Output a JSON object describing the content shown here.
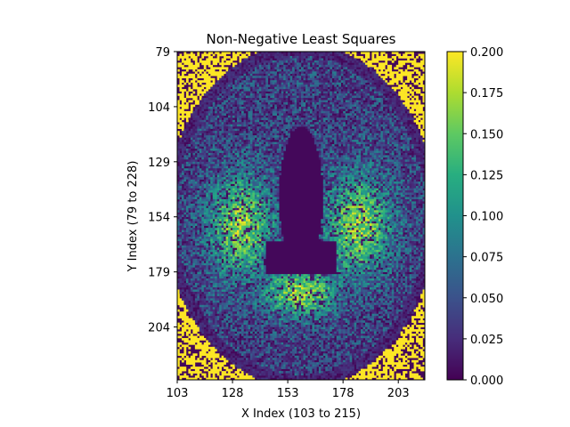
{
  "chart_data": {
    "type": "heatmap",
    "title": "Non-Negative Least Squares",
    "xlabel": "X Index (103 to 215)",
    "ylabel": "Y Index (79 to 228)",
    "x_range": [
      103,
      215
    ],
    "y_range": [
      79,
      228
    ],
    "x_ticks": [
      103,
      128,
      153,
      178,
      203
    ],
    "y_ticks": [
      79,
      104,
      129,
      154,
      179,
      204
    ],
    "colormap": "viridis",
    "colorbar": {
      "range": [
        0.0,
        0.2
      ],
      "ticks": [
        "0.000",
        "0.025",
        "0.050",
        "0.075",
        "0.100",
        "0.125",
        "0.150",
        "0.175",
        "0.200"
      ]
    },
    "description_of_values": "Axial brain slice map: bright skull ring near 0.2, dark ventricles near 0, white-matter regions 0.10-0.20",
    "grid": false
  }
}
